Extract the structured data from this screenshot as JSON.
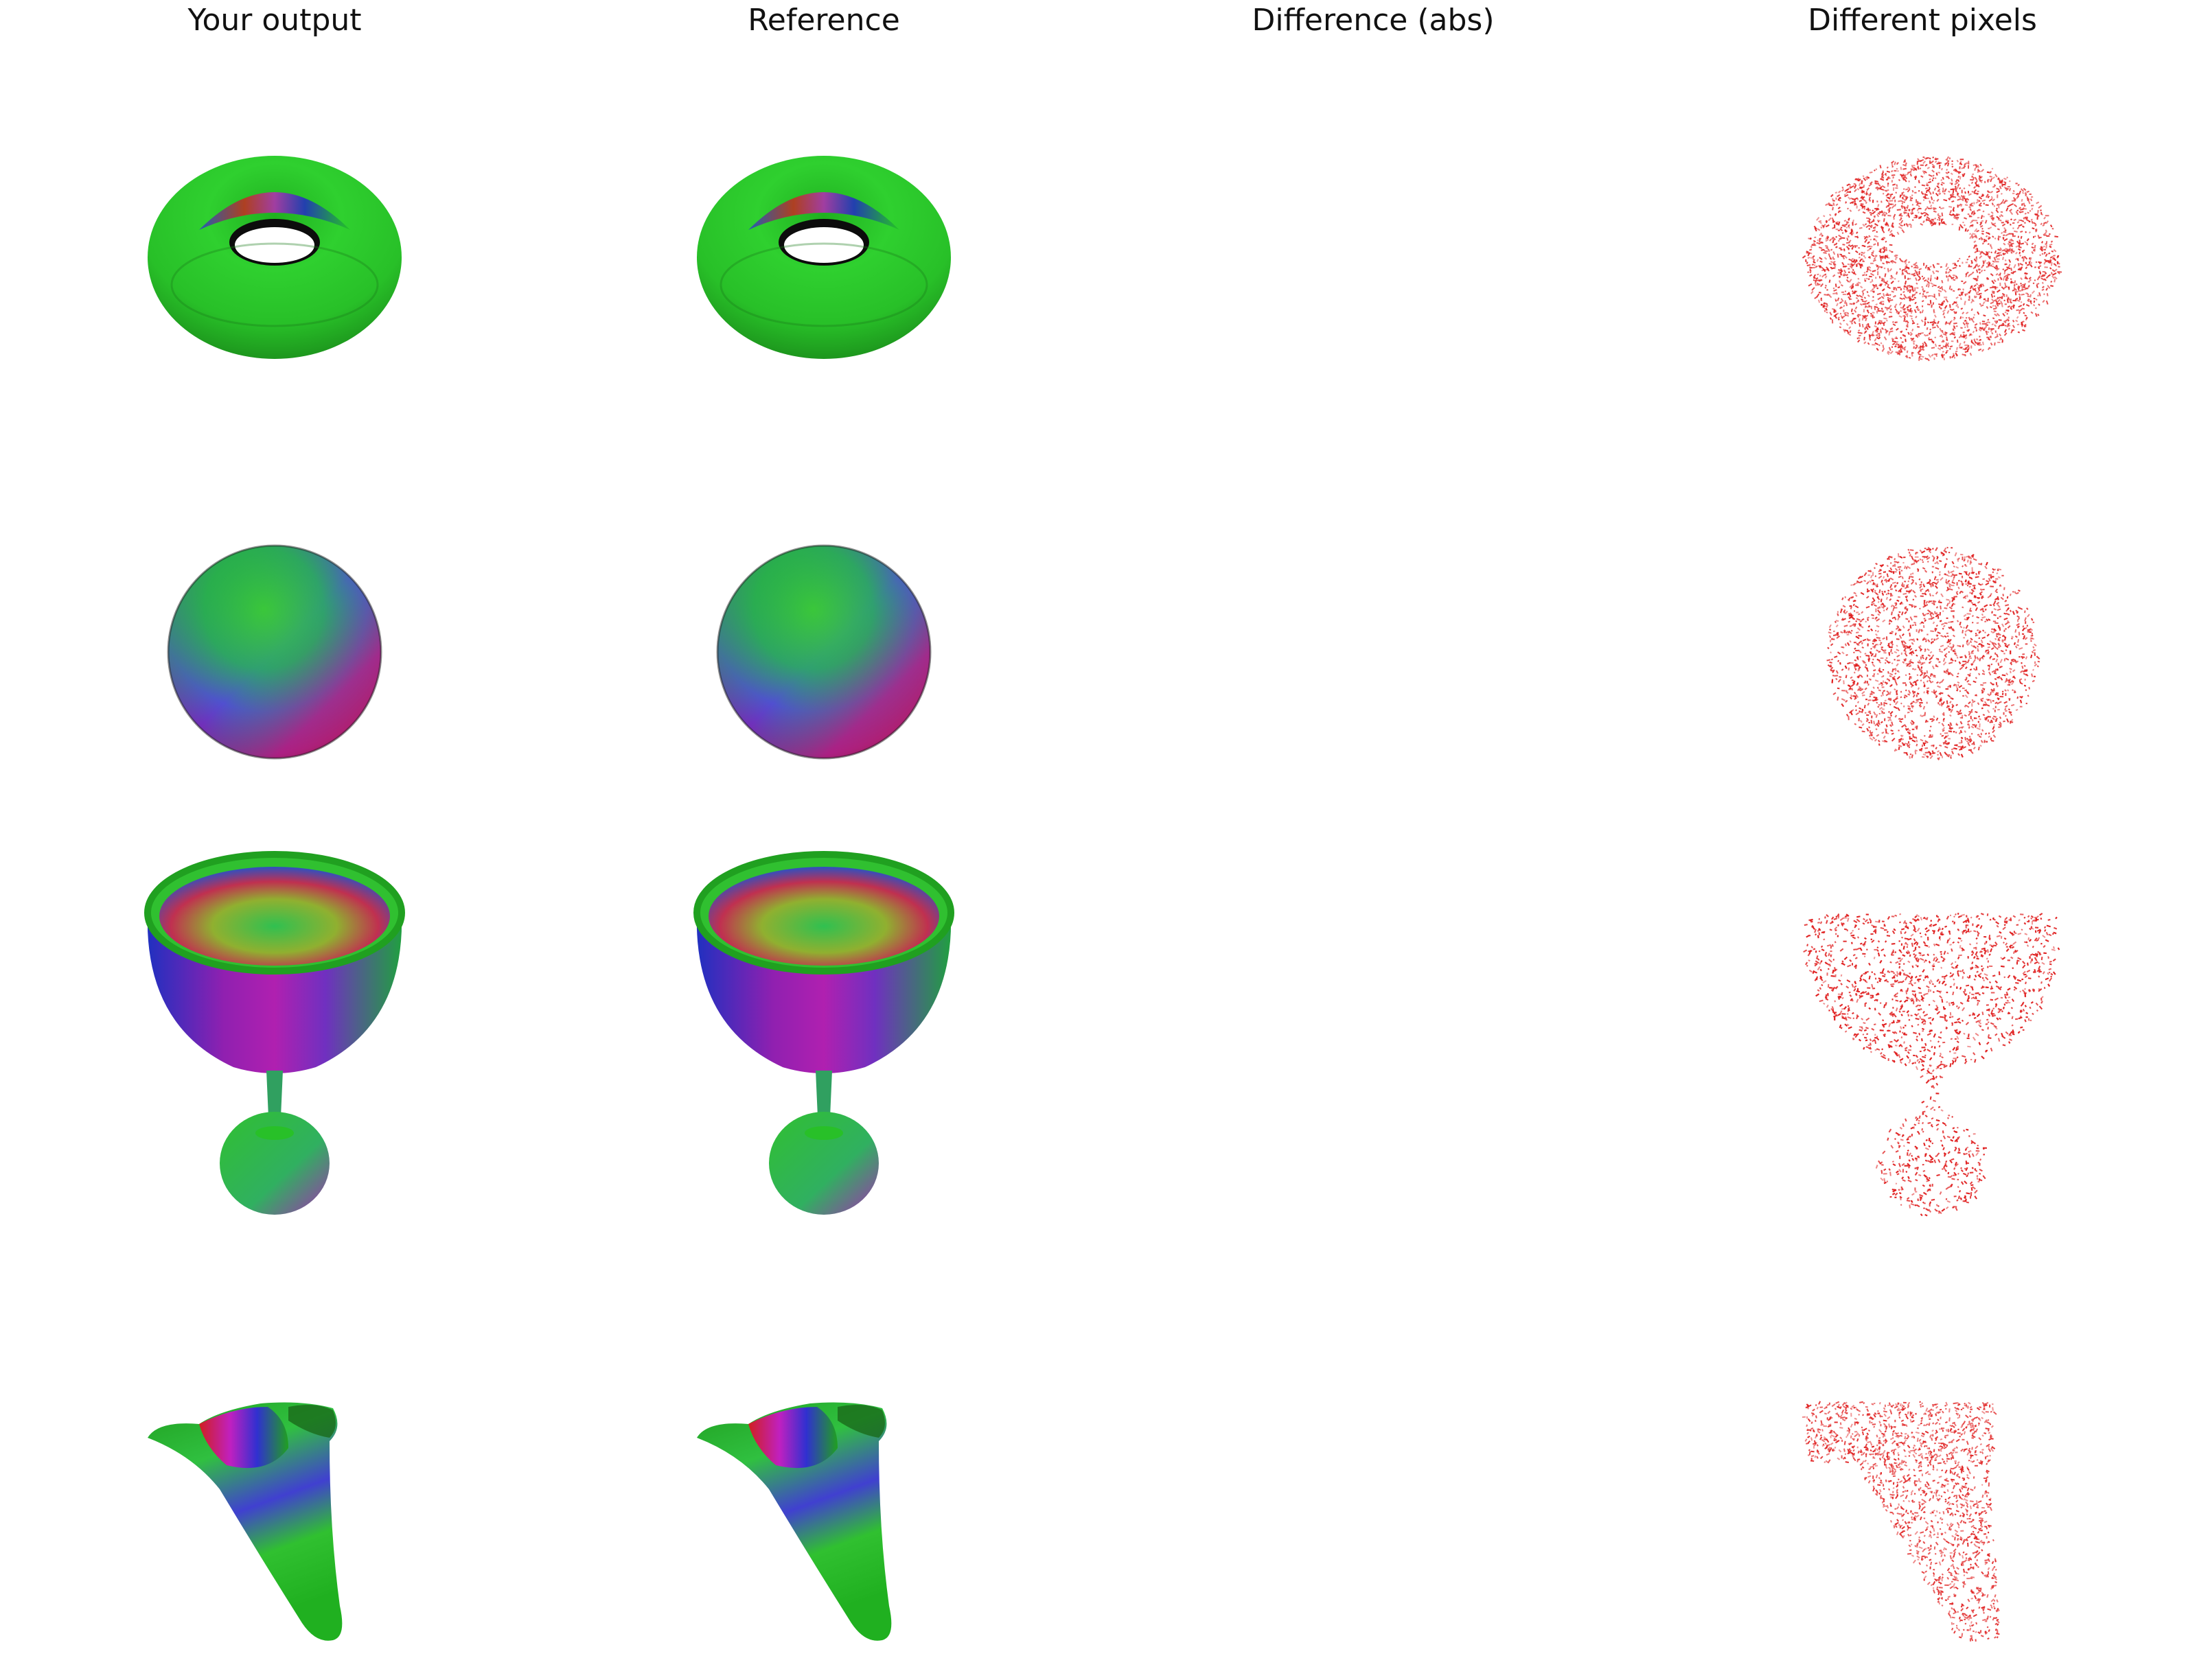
{
  "headers": {
    "output": "Your output",
    "reference": "Reference",
    "difference": "Difference (abs)",
    "diff_pixels": "Different pixels"
  },
  "rows": [
    {
      "shape": "torus"
    },
    {
      "shape": "sphere"
    },
    {
      "shape": "goblet"
    },
    {
      "shape": "blob"
    }
  ],
  "colors": {
    "background": "#ffffff",
    "diff_dot": "#e02020",
    "primary_green": "#22cc22",
    "magenta": "#c020c0",
    "blue": "#3030d0",
    "red": "#d02020"
  }
}
